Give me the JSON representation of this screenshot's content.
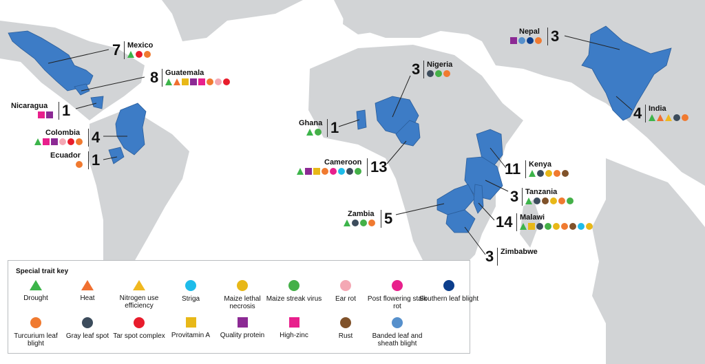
{
  "colors": {
    "land": "#d2d4d6",
    "highlight": "#3d7cc6",
    "drought": "#3cb44a",
    "heat": "#f07030",
    "nue": "#f0b820",
    "striga": "#1ebcea",
    "mln": "#e8b818",
    "msv": "#44b048",
    "ear_rot": "#f4a8b4",
    "pfsr": "#e8208c",
    "slb": "#0c3e8c",
    "tlb": "#f07a30",
    "gls": "#3c4c5c",
    "tsc": "#e81c2c",
    "provit_a": "#e8b818",
    "qpm": "#8c2a94",
    "zinc": "#e8208c",
    "rust": "#80522a",
    "blsb": "#5690cc"
  },
  "countries": [
    {
      "id": "mexico",
      "name": "Mexico",
      "count": "7",
      "icons": [
        "drought",
        "tsc",
        "tlb"
      ]
    },
    {
      "id": "guatemala",
      "name": "Guatemala",
      "count": "8",
      "icons": [
        "drought",
        "heat",
        "zinc_sq",
        "qpm",
        "zinc",
        "tlb",
        "ear_rot",
        "tsc"
      ]
    },
    {
      "id": "nicaragua",
      "name": "Nicaragua",
      "count": "1",
      "icons": [
        "zinc",
        "qpm"
      ]
    },
    {
      "id": "colombia",
      "name": "Colombia",
      "count": "4",
      "icons": [
        "drought",
        "zinc",
        "qpm",
        "ear_rot",
        "tsc",
        "tlb"
      ]
    },
    {
      "id": "ecuador",
      "name": "Ecuador",
      "count": "1",
      "icons": [
        "tlb"
      ]
    },
    {
      "id": "ghana",
      "name": "Ghana",
      "count": "1",
      "icons": [
        "drought",
        "msv"
      ]
    },
    {
      "id": "nigeria",
      "name": "Nigeria",
      "count": "3",
      "icons": [
        "gls",
        "msv",
        "tlb"
      ]
    },
    {
      "id": "cameroon",
      "name": "Cameroon",
      "count": "13",
      "icons": [
        "drought",
        "qpm",
        "provit_a",
        "tlb",
        "pfsr",
        "striga",
        "gls",
        "msv"
      ]
    },
    {
      "id": "nepal",
      "name": "Nepal",
      "count": "3",
      "icons": [
        "qpm",
        "blsb",
        "slb",
        "tlb"
      ]
    },
    {
      "id": "india",
      "name": "India",
      "count": "4",
      "icons": [
        "drought",
        "heat",
        "nue",
        "gls",
        "tlb"
      ]
    },
    {
      "id": "kenya",
      "name": "Kenya",
      "count": "11",
      "icons": [
        "drought",
        "gls",
        "mln",
        "tlb",
        "rust"
      ]
    },
    {
      "id": "tanzania",
      "name": "Tanzania",
      "count": "3",
      "icons": [
        "drought",
        "gls",
        "rust",
        "mln",
        "tlb",
        "msv"
      ]
    },
    {
      "id": "malawi",
      "name": "Malawi",
      "count": "14",
      "icons": [
        "drought",
        "provit_a",
        "gls",
        "msv",
        "mln",
        "tlb",
        "rust",
        "striga",
        "mln"
      ]
    },
    {
      "id": "zambia",
      "name": "Zambia",
      "count": "5",
      "icons": [
        "drought",
        "gls",
        "msv",
        "tlb"
      ]
    },
    {
      "id": "zimbabwe",
      "name": "Zimbabwe",
      "count": "3",
      "icons": []
    }
  ],
  "key": {
    "title": "Special trait key",
    "items": [
      {
        "label": "Drought",
        "shape": "tri",
        "color": "drought"
      },
      {
        "label": "Heat",
        "shape": "tri",
        "color": "heat"
      },
      {
        "label": "Nitrogen use efficiency",
        "shape": "tri",
        "color": "nue"
      },
      {
        "label": "Striga",
        "shape": "circle",
        "color": "striga"
      },
      {
        "label": "Maize lethal necrosis",
        "shape": "circle",
        "color": "mln"
      },
      {
        "label": "Maize streak virus",
        "shape": "circle",
        "color": "msv"
      },
      {
        "label": "Ear rot",
        "shape": "circle",
        "color": "ear_rot"
      },
      {
        "label": "Post flowering stalk rot",
        "shape": "circle",
        "color": "pfsr"
      },
      {
        "label": "Southern leaf blight",
        "shape": "circle",
        "color": "slb"
      },
      {
        "label": "Turcurium leaf blight",
        "shape": "circle",
        "color": "tlb"
      },
      {
        "label": "Gray leaf spot",
        "shape": "circle",
        "color": "gls"
      },
      {
        "label": "Tar spot complex",
        "shape": "circle",
        "color": "tsc"
      },
      {
        "label": "Provitamin A",
        "shape": "square",
        "color": "provit_a"
      },
      {
        "label": "Quality protein",
        "shape": "square",
        "color": "qpm"
      },
      {
        "label": "High-zinc",
        "shape": "square",
        "color": "zinc"
      },
      {
        "label": "Rust",
        "shape": "circle",
        "color": "rust"
      },
      {
        "label": "Banded leaf and sheath blight",
        "shape": "circle",
        "color": "blsb"
      }
    ]
  }
}
